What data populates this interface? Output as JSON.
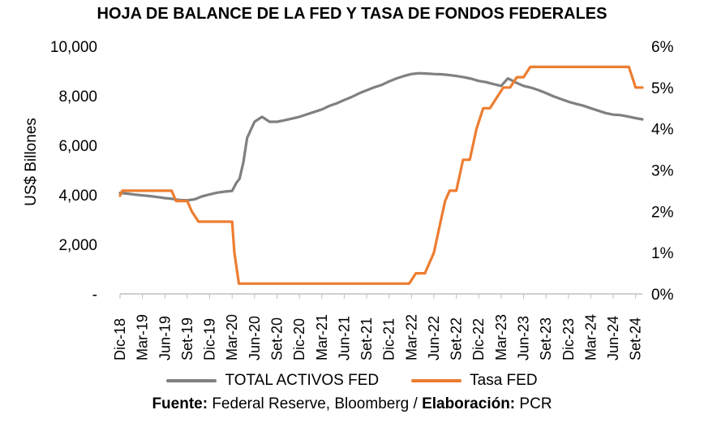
{
  "title": "HOJA DE BALANCE DE LA FED Y TASA DE FONDOS FEDERALES",
  "source": {
    "fuente_label": "Fuente:",
    "fuente_text": "Federal Reserve, Bloomberg /",
    "elaboracion_label": "Elaboración:",
    "elaboracion_text": "PCR"
  },
  "colors": {
    "assets": "#808080",
    "rate": "#ED7D31",
    "axis": "#bfbfbf"
  },
  "chart_data": {
    "type": "line",
    "title": "HOJA DE BALANCE DE LA FED Y TASA DE FONDOS FEDERALES",
    "ylabel": "US$ Billones",
    "ylim": [
      0,
      10000
    ],
    "y2lim": [
      0,
      6
    ],
    "y_ticks": [
      "-",
      "2,000",
      "4,000",
      "6,000",
      "8,000",
      "10,000"
    ],
    "y2_ticks": [
      "0%",
      "1%",
      "2%",
      "3%",
      "4%",
      "5%",
      "6%"
    ],
    "x_ticks": [
      "Dic-18",
      "Mar-19",
      "Jun-19",
      "Set-19",
      "Dic-19",
      "Mar-20",
      "Jun-20",
      "Set-20",
      "Dic-20",
      "Mar-21",
      "Jun-21",
      "Set-21",
      "Dic-21",
      "Mar-22",
      "Jun-22",
      "Set-22",
      "Dic-22",
      "Mar-23",
      "Jun-23",
      "Set-23",
      "Dic-23",
      "Mar-24",
      "Jun-24",
      "Set-24"
    ],
    "grid": false,
    "legend_position": "bottom",
    "series": [
      {
        "name": "TOTAL ACTIVOS FED",
        "axis": "left",
        "color": "#808080",
        "points": [
          [
            0,
            4080
          ],
          [
            0.33,
            4050
          ],
          [
            0.67,
            4010
          ],
          [
            1,
            3980
          ],
          [
            1.33,
            3950
          ],
          [
            1.67,
            3910
          ],
          [
            2,
            3870
          ],
          [
            2.33,
            3840
          ],
          [
            2.67,
            3790
          ],
          [
            3,
            3780
          ],
          [
            3.33,
            3820
          ],
          [
            3.67,
            3940
          ],
          [
            4,
            4020
          ],
          [
            4.33,
            4090
          ],
          [
            4.67,
            4130
          ],
          [
            5,
            4160
          ],
          [
            5.2,
            4500
          ],
          [
            5.33,
            4650
          ],
          [
            5.5,
            5300
          ],
          [
            5.67,
            6300
          ],
          [
            6,
            6950
          ],
          [
            6.33,
            7150
          ],
          [
            6.67,
            6950
          ],
          [
            7,
            6950
          ],
          [
            7.33,
            7010
          ],
          [
            7.67,
            7080
          ],
          [
            8,
            7150
          ],
          [
            8.33,
            7250
          ],
          [
            8.67,
            7350
          ],
          [
            9,
            7450
          ],
          [
            9.33,
            7590
          ],
          [
            9.67,
            7700
          ],
          [
            10,
            7830
          ],
          [
            10.33,
            7950
          ],
          [
            10.67,
            8100
          ],
          [
            11,
            8220
          ],
          [
            11.33,
            8340
          ],
          [
            11.67,
            8440
          ],
          [
            12,
            8580
          ],
          [
            12.33,
            8700
          ],
          [
            12.67,
            8800
          ],
          [
            13,
            8880
          ],
          [
            13.33,
            8910
          ],
          [
            13.67,
            8900
          ],
          [
            14,
            8880
          ],
          [
            14.33,
            8870
          ],
          [
            14.67,
            8840
          ],
          [
            15,
            8800
          ],
          [
            15.33,
            8750
          ],
          [
            15.67,
            8690
          ],
          [
            16,
            8600
          ],
          [
            16.33,
            8550
          ],
          [
            16.67,
            8470
          ],
          [
            17,
            8400
          ],
          [
            17.3,
            8700
          ],
          [
            17.67,
            8530
          ],
          [
            18,
            8400
          ],
          [
            18.33,
            8330
          ],
          [
            18.67,
            8230
          ],
          [
            19,
            8110
          ],
          [
            19.33,
            7980
          ],
          [
            19.67,
            7870
          ],
          [
            20,
            7760
          ],
          [
            20.33,
            7680
          ],
          [
            20.67,
            7600
          ],
          [
            21,
            7500
          ],
          [
            21.33,
            7400
          ],
          [
            21.67,
            7300
          ],
          [
            22,
            7240
          ],
          [
            22.33,
            7220
          ],
          [
            22.67,
            7160
          ],
          [
            23,
            7100
          ],
          [
            23.3,
            7050
          ]
        ]
      },
      {
        "name": "Tasa FED",
        "axis": "right",
        "color": "#ED7D31",
        "points": [
          [
            0,
            2.38
          ],
          [
            0.1,
            2.5
          ],
          [
            2.3,
            2.5
          ],
          [
            2.5,
            2.25
          ],
          [
            3,
            2.25
          ],
          [
            3.2,
            2.0
          ],
          [
            3.5,
            1.75
          ],
          [
            5,
            1.75
          ],
          [
            5.1,
            1.0
          ],
          [
            5.3,
            0.25
          ],
          [
            12.9,
            0.25
          ],
          [
            13.2,
            0.5
          ],
          [
            13.6,
            0.5
          ],
          [
            14,
            1.0
          ],
          [
            14.3,
            1.75
          ],
          [
            14.5,
            2.25
          ],
          [
            14.7,
            2.5
          ],
          [
            15,
            2.5
          ],
          [
            15.3,
            3.25
          ],
          [
            15.6,
            3.25
          ],
          [
            15.9,
            4.0
          ],
          [
            16.2,
            4.5
          ],
          [
            16.5,
            4.5
          ],
          [
            16.8,
            4.75
          ],
          [
            17.1,
            5.0
          ],
          [
            17.4,
            5.0
          ],
          [
            17.7,
            5.25
          ],
          [
            18,
            5.25
          ],
          [
            18.3,
            5.5
          ],
          [
            22.7,
            5.5
          ],
          [
            23,
            5.0
          ],
          [
            23.3,
            5.0
          ]
        ]
      }
    ]
  }
}
